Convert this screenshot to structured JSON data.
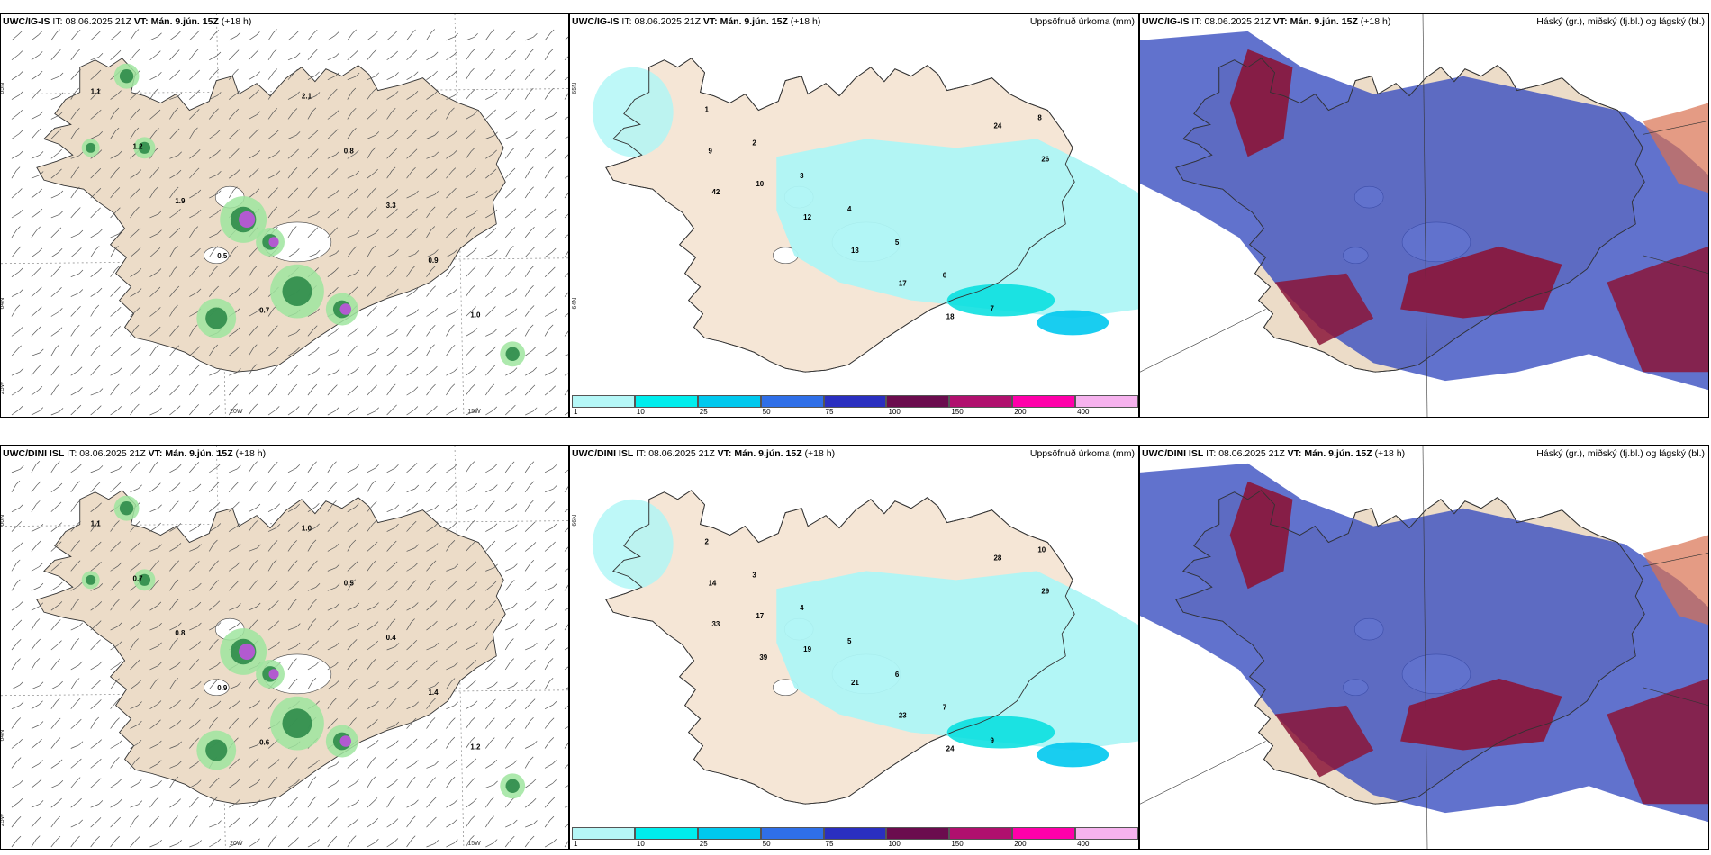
{
  "panels": [
    {
      "id": "p1",
      "model": "UWC/IG-IS",
      "it_label": "IT:",
      "it": "08.06.2025 21Z",
      "vt_label": "VT:",
      "vt": "Mán. 9.jún. 15Z",
      "lead": "(+18 h)",
      "right": "",
      "kind": "wind",
      "lon_labels": [
        "20W",
        "15W"
      ],
      "lat_labels": [
        "65N",
        "64N",
        "25W"
      ]
    },
    {
      "id": "p2",
      "model": "UWC/IG-IS",
      "it_label": "IT:",
      "it": "08.06.2025 21Z",
      "vt_label": "VT:",
      "vt": "Mán. 9.jún. 15Z",
      "lead": "(+18 h)",
      "right": "Uppsöfnuð úrkoma (mm)",
      "kind": "precip",
      "lat_labels": [
        "65N",
        "64N"
      ]
    },
    {
      "id": "p3",
      "model": "UWC/IG-IS",
      "it_label": "IT:",
      "it": "08.06.2025 21Z",
      "vt_label": "VT:",
      "vt": "Mán. 9.jún. 15Z",
      "lead": "(+18 h)",
      "right": "Háský (gr.), miðský (fj.bl.) og lágský (bl.)",
      "kind": "cloud"
    },
    {
      "id": "p4",
      "model": "UWC/DINI ISL",
      "it_label": "IT:",
      "it": "08.06.2025 21Z",
      "vt_label": "VT:",
      "vt": "Mán. 9.jún. 15Z",
      "lead": "(+18 h)",
      "right": "",
      "kind": "wind",
      "lon_labels": [
        "20W",
        "15W"
      ],
      "lat_labels": [
        "66N",
        "64N",
        "25W"
      ]
    },
    {
      "id": "p5",
      "model": "UWC/DINI ISL",
      "it_label": "IT:",
      "it": "08.06.2025 21Z",
      "vt_label": "VT:",
      "vt": "Mán. 9.jún. 15Z",
      "lead": "(+18 h)",
      "right": "Uppsöfnuð úrkoma (mm)",
      "kind": "precip",
      "lat_labels": [
        "66N"
      ]
    },
    {
      "id": "p6",
      "model": "UWC/DINI ISL",
      "it_label": "IT:",
      "it": "08.06.2025 21Z",
      "vt_label": "VT:",
      "vt": "Mán. 9.jún. 15Z",
      "lead": "(+18 h)",
      "right": "Háský (gr.), miðský (fj.bl.) og lágský (bl.)",
      "kind": "cloud"
    }
  ],
  "colorbar": {
    "ticks": [
      "1",
      "10",
      "25",
      "50",
      "75",
      "100",
      "150",
      "200",
      "400"
    ],
    "colors": [
      "#b5f7f7",
      "#00eded",
      "#00c8ee",
      "#2f6fe8",
      "#2a2fc0",
      "#6b0c4e",
      "#b0106e",
      "#ff00aa",
      "#f6b2ee"
    ]
  },
  "precip_labels_top": [
    "1",
    "2",
    "3",
    "4",
    "5",
    "6",
    "7",
    "8",
    "9",
    "10",
    "12",
    "13",
    "17",
    "18",
    "24",
    "26",
    "42"
  ],
  "precip_labels_bottom": [
    "2",
    "3",
    "4",
    "5",
    "6",
    "7",
    "9",
    "10",
    "14",
    "17",
    "19",
    "21",
    "23",
    "24",
    "28",
    "29",
    "33",
    "39"
  ],
  "wind_labels_top": [
    "1.1",
    "1.2",
    "1.9",
    "0.5",
    "0.7",
    "2.1",
    "0.8",
    "3.3",
    "0.9",
    "1.0"
  ],
  "wind_labels_bottom": [
    "1.1",
    "0.7",
    "0.8",
    "0.9",
    "0.6",
    "1.0",
    "0.5",
    "0.4",
    "1.4",
    "1.2"
  ],
  "colors": {
    "land": "#ecdcc8",
    "sea": "#ffffff",
    "coast": "#333333",
    "cloud_high": "#8b1538",
    "cloud_mid": "#3a4fc0",
    "cloud_low": "#5a6fd8"
  }
}
